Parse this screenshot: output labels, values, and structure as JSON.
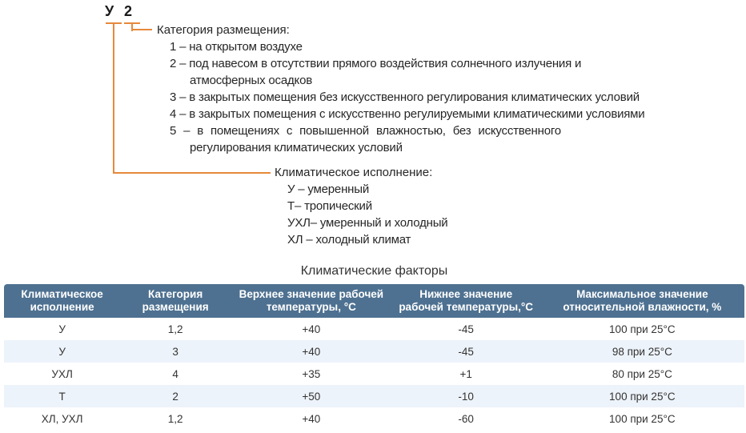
{
  "designation": {
    "climate_code": "У",
    "category_code": "2"
  },
  "placement_category": {
    "title": "Категория размещения:",
    "lines": [
      "1 – на открытом воздухе",
      "2 – под навесом в отсутствии прямого воздействия солнечного излучения и",
      "атмосферных осадков",
      "3 – в закрытых помещения без искусственного регулирования климатических условий",
      "4 – в закрытых помещения с искусственно регулируемыми климатическими условиями",
      "5 – в помещениях с повышенной влажностью, без искусственного",
      "регулирования климатических условий"
    ]
  },
  "climatic_version": {
    "title": "Климатическое исполнение:",
    "lines": [
      "У – умеренный",
      "Т– тропический",
      "УХЛ– умеренный и холодный",
      "ХЛ – холодный климат"
    ]
  },
  "table": {
    "title": "Климатические факторы",
    "headers": [
      "Климатическое исполнение",
      "Категория размещения",
      "Верхнее значение рабочей температуры, °С",
      "Нижнее значение рабочей температуры,°С",
      "Максимальное значение относительной влажности, %"
    ],
    "rows": [
      [
        "У",
        "1,2",
        "+40",
        "-45",
        "100 при 25°С"
      ],
      [
        "У",
        "3",
        "+40",
        "-45",
        "98 при 25°С"
      ],
      [
        "УХЛ",
        "4",
        "+35",
        "+1",
        "80 при 25°С"
      ],
      [
        "Т",
        "2",
        "+50",
        "-10",
        "100 при 25°С"
      ],
      [
        "ХЛ, УХЛ",
        "1,2",
        "+40",
        "-60",
        "100 при 25°С"
      ]
    ]
  },
  "colors": {
    "accent_line": "#E6893B",
    "table_header_bg": "#4E7191",
    "table_alt_row_bg": "#EDF3FA"
  }
}
